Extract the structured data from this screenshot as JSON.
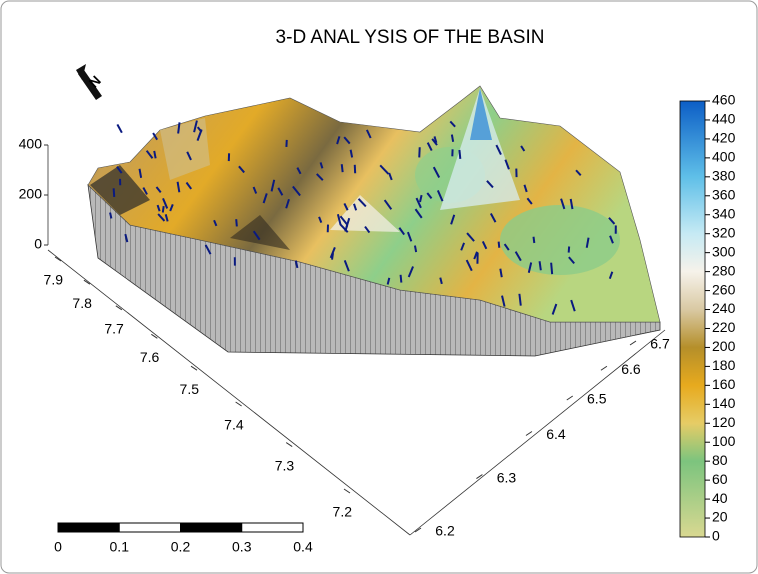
{
  "chart_data": {
    "type": "surface3d",
    "title": "3-D ANAL YSIS OF THE BASIN",
    "zlim": [
      0,
      400
    ],
    "zticks": [
      0,
      200,
      400
    ],
    "xlim": [
      7.9,
      7.2
    ],
    "xticks": [
      7.9,
      7.8,
      7.7,
      7.6,
      7.5,
      7.4,
      7.3,
      7.2
    ],
    "ylim": [
      6.2,
      6.7
    ],
    "yticks": [
      6.2,
      6.3,
      6.4,
      6.5,
      6.6,
      6.7
    ],
    "colorbar": {
      "lim": [
        0,
        460
      ],
      "ticks": [
        0,
        20,
        40,
        60,
        80,
        100,
        120,
        140,
        160,
        180,
        200,
        220,
        240,
        260,
        280,
        300,
        320,
        340,
        360,
        380,
        400,
        420,
        440,
        460
      ],
      "colormap": [
        {
          "value": 0,
          "color": "#d9d891"
        },
        {
          "value": 80,
          "color": "#7cc47e"
        },
        {
          "value": 120,
          "color": "#e6cc66"
        },
        {
          "value": 160,
          "color": "#e7aa1e"
        },
        {
          "value": 200,
          "color": "#b58f2a"
        },
        {
          "value": 240,
          "color": "#d9c9a3"
        },
        {
          "value": 280,
          "color": "#f6f2ea"
        },
        {
          "value": 320,
          "color": "#c6eaf4"
        },
        {
          "value": 380,
          "color": "#5fbfe8"
        },
        {
          "value": 460,
          "color": "#0c5ec6"
        }
      ]
    },
    "scale_bar": {
      "ticks": [
        0,
        0.1,
        0.2,
        0.3,
        0.4
      ]
    }
  }
}
